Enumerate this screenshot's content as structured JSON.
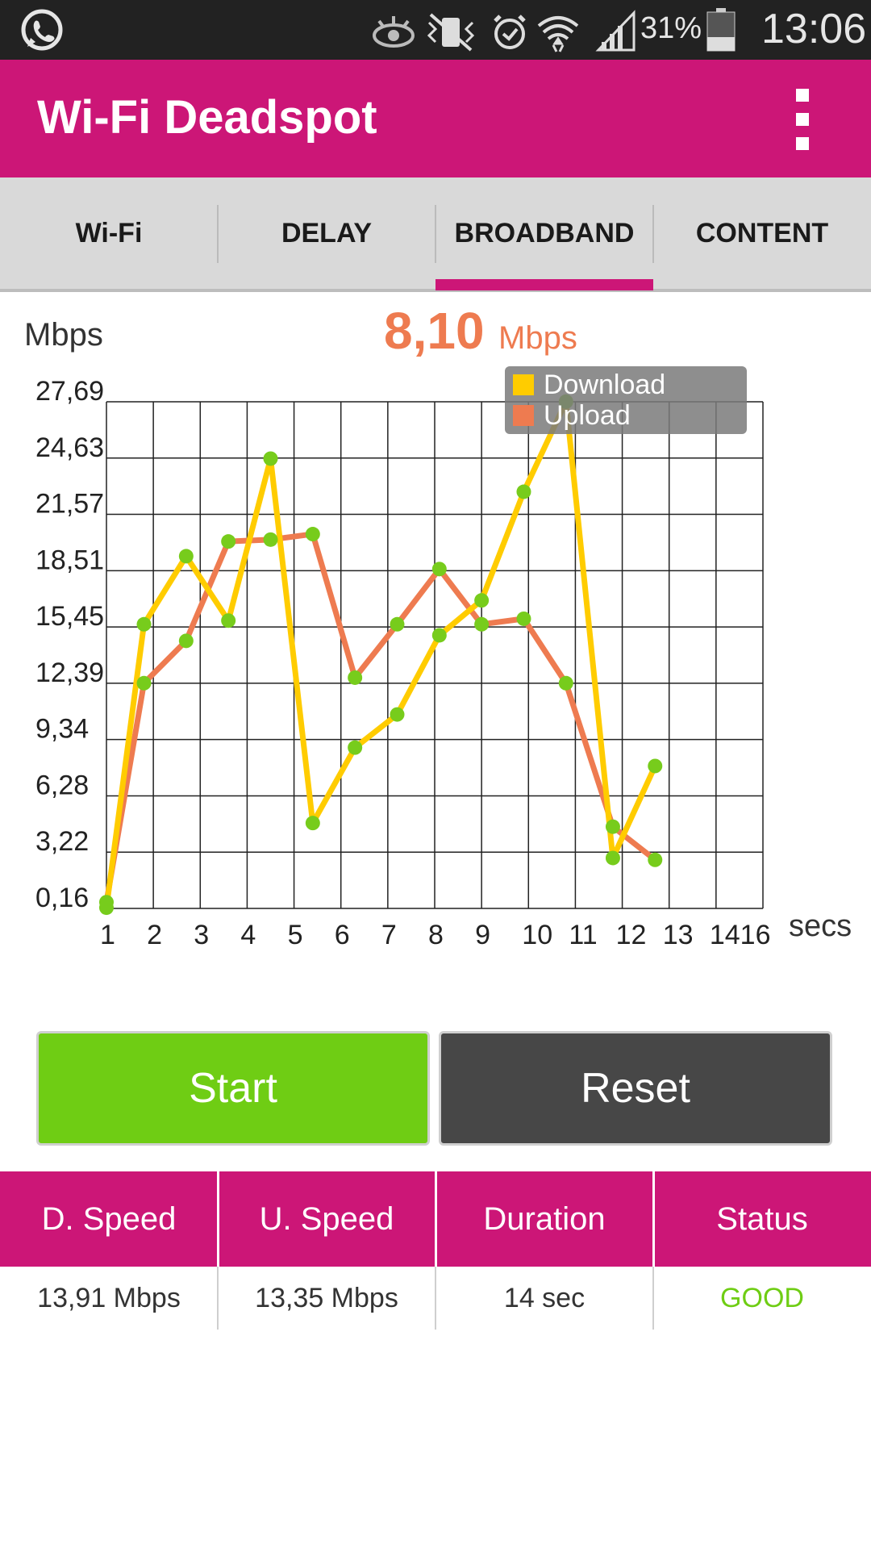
{
  "status_bar": {
    "battery_percent": "31%",
    "clock": "13:06",
    "icons": [
      "whatsapp-icon",
      "eye-icon",
      "vibrate-off-icon",
      "alarm-icon",
      "wifi-icon",
      "signal-icon",
      "battery-icon"
    ]
  },
  "app_bar": {
    "title": "Wi-Fi Deadspot",
    "menu_icon": "overflow-menu-icon"
  },
  "tabs": [
    {
      "label": "Wi-Fi"
    },
    {
      "label": "DELAY"
    },
    {
      "label": "BROADBAND",
      "selected": true
    },
    {
      "label": "CONTENT"
    }
  ],
  "current_speed": {
    "value": "8,10",
    "unit": "Mbps"
  },
  "colors": {
    "accent": "#cc1677",
    "download": "#ffcc00",
    "upload": "#ee7b50",
    "point": "#77cc1c",
    "start": "#6fcd14",
    "reset": "#474747"
  },
  "chart_data": {
    "type": "line",
    "ylabel": "Mbps",
    "xlabel": "secs",
    "y_ticks": [
      "27,69",
      "24,63",
      "21,57",
      "18,51",
      "15,45",
      "12,39",
      "9,34",
      "6,28",
      "3,22",
      "0,16"
    ],
    "x_ticks": [
      "1",
      "2",
      "3",
      "4",
      "5",
      "6",
      "7",
      "8",
      "9",
      "10",
      "11",
      "12",
      "13",
      "1416"
    ],
    "ylim": [
      0.16,
      27.69
    ],
    "xlim": [
      1,
      15
    ],
    "grid": true,
    "legend_position": "top-right",
    "series": [
      {
        "name": "Download",
        "points": [
          [
            1,
            0.2
          ],
          [
            1.8,
            15.6
          ],
          [
            2.7,
            19.3
          ],
          [
            3.6,
            15.8
          ],
          [
            4.5,
            24.6
          ],
          [
            5.4,
            4.8
          ],
          [
            6.3,
            8.9
          ],
          [
            7.2,
            10.7
          ],
          [
            8.1,
            15.0
          ],
          [
            9.0,
            16.9
          ],
          [
            9.9,
            22.8
          ],
          [
            10.8,
            27.7
          ],
          [
            11.8,
            2.9
          ],
          [
            12.7,
            7.9
          ]
        ]
      },
      {
        "name": "Upload",
        "points": [
          [
            1,
            0.5
          ],
          [
            1.8,
            12.4
          ],
          [
            2.7,
            14.7
          ],
          [
            3.6,
            20.1
          ],
          [
            4.5,
            20.2
          ],
          [
            5.4,
            20.5
          ],
          [
            6.3,
            12.7
          ],
          [
            7.2,
            15.6
          ],
          [
            8.1,
            18.6
          ],
          [
            9.0,
            15.6
          ],
          [
            9.9,
            15.9
          ],
          [
            10.8,
            12.4
          ],
          [
            11.8,
            4.6
          ],
          [
            12.7,
            2.8
          ]
        ]
      }
    ]
  },
  "buttons": {
    "start": "Start",
    "reset": "Reset"
  },
  "stats": {
    "headers": [
      "D. Speed",
      "U. Speed",
      "Duration",
      "Status"
    ],
    "values": [
      "13,91 Mbps",
      "13,35 Mbps",
      "14 sec",
      "GOOD"
    ]
  }
}
